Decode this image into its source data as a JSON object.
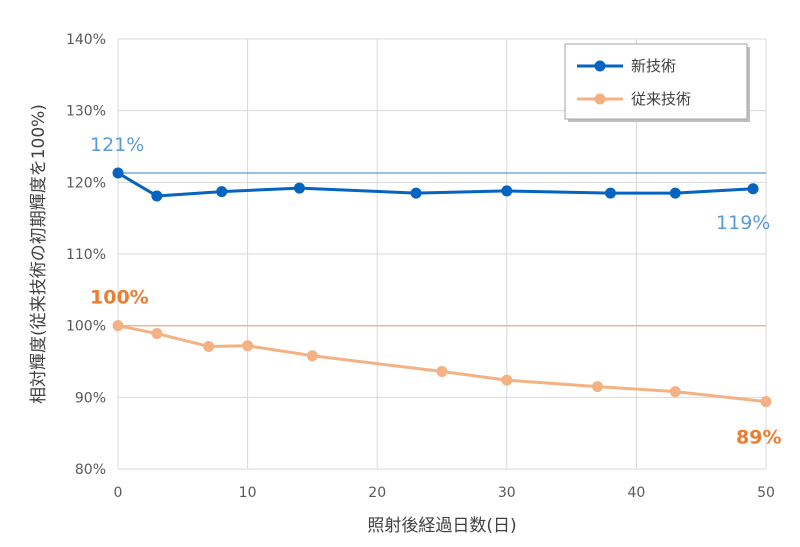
{
  "chart_data": {
    "type": "line",
    "xlabel": "照射後経過日数(日)",
    "ylabel": "相対輝度(従来技術の初期輝度を100%)",
    "xlim": [
      0,
      50
    ],
    "ylim": [
      80,
      140
    ],
    "x_ticks": [
      "0",
      "10",
      "20",
      "30",
      "40",
      "50"
    ],
    "y_ticks": [
      "80%",
      "90%",
      "100%",
      "110%",
      "120%",
      "130%",
      "140%"
    ],
    "grid": true,
    "legend_position": "top-right",
    "series": [
      {
        "name": "新技術",
        "color": "#0563C1",
        "points": [
          [
            0,
            121.3
          ],
          [
            3,
            118.1
          ],
          [
            8,
            118.7
          ],
          [
            14,
            119.2
          ],
          [
            23,
            118.5
          ],
          [
            30,
            118.8
          ],
          [
            38,
            118.5
          ],
          [
            43,
            118.5
          ],
          [
            49,
            119.1
          ]
        ]
      },
      {
        "name": "従来技術",
        "color": "#F4B183",
        "points": [
          [
            0,
            100.0
          ],
          [
            3,
            98.9
          ],
          [
            7,
            97.1
          ],
          [
            10,
            97.2
          ],
          [
            15,
            95.8
          ],
          [
            25,
            93.6
          ],
          [
            30,
            92.4
          ],
          [
            37,
            91.5
          ],
          [
            43,
            90.8
          ],
          [
            50,
            89.4
          ]
        ]
      }
    ],
    "reference_lines": [
      {
        "y": 121.3,
        "color": "#5B9BD5"
      },
      {
        "y": 100.0,
        "color": "#F4B183"
      }
    ],
    "annotations": [
      {
        "text": "121%",
        "x": 0,
        "y": 121.3,
        "color": "#5B9BD5",
        "bold": false
      },
      {
        "text": "119%",
        "x": 49,
        "y": 119.1,
        "color": "#5B9BD5",
        "bold": false
      },
      {
        "text": "100%",
        "x": 0,
        "y": 100.0,
        "color": "#ED7D31",
        "bold": true
      },
      {
        "text": "89%",
        "x": 50,
        "y": 89.4,
        "color": "#ED7D31",
        "bold": true
      }
    ]
  }
}
